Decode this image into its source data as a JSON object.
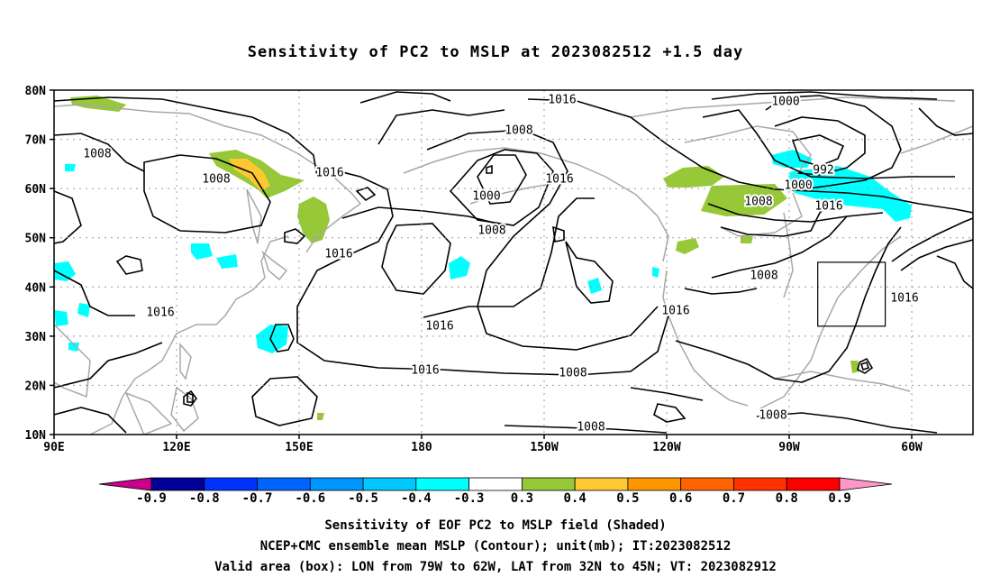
{
  "title": "Sensitivity of PC2 to MSLP at 2023082512 +1.5 day",
  "lat_labels": [
    "80N",
    "70N",
    "60N",
    "50N",
    "40N",
    "30N",
    "20N",
    "10N"
  ],
  "lon_labels": [
    "90E",
    "120E",
    "150E",
    "180",
    "150W",
    "120W",
    "90W",
    "60W"
  ],
  "contour_labels": [
    "1016",
    "1000",
    "1008",
    "1008",
    "1016",
    "1008",
    "1000",
    "1016",
    "1008",
    "992",
    "1000",
    "1008",
    "1016",
    "1016",
    "1016",
    "1016",
    "1008",
    "1008",
    "1016",
    "1016",
    "1016",
    "1008",
    "1008"
  ],
  "colorbar": {
    "labels": [
      "-0.9",
      "-0.8",
      "-0.7",
      "-0.6",
      "-0.5",
      "-0.4",
      "-0.3",
      "0.3",
      "0.4",
      "0.5",
      "0.6",
      "0.7",
      "0.8",
      "0.9"
    ],
    "colors": [
      "#000097",
      "#0032ff",
      "#0064ff",
      "#0096ff",
      "#00c8ff",
      "#00ffff",
      "#ffffff",
      "#96c837",
      "#ffc832",
      "#ff9600",
      "#ff6400",
      "#ff3200",
      "#ff0000"
    ],
    "under_color": "#c8008c",
    "over_color": "#ff96c8"
  },
  "shading_colors": {
    "blue": "#00ffff",
    "green": "#96c837",
    "yellow": "#ffc832"
  },
  "captions": [
    "Sensitivity of EOF PC2 to MSLP field (Shaded)",
    "NCEP+CMC ensemble mean MSLP (Contour); unit(mb); IT:2023082512",
    "Valid area (box): LON from 79W to 62W, LAT from 32N to 45N; VT: 2023082912"
  ]
}
